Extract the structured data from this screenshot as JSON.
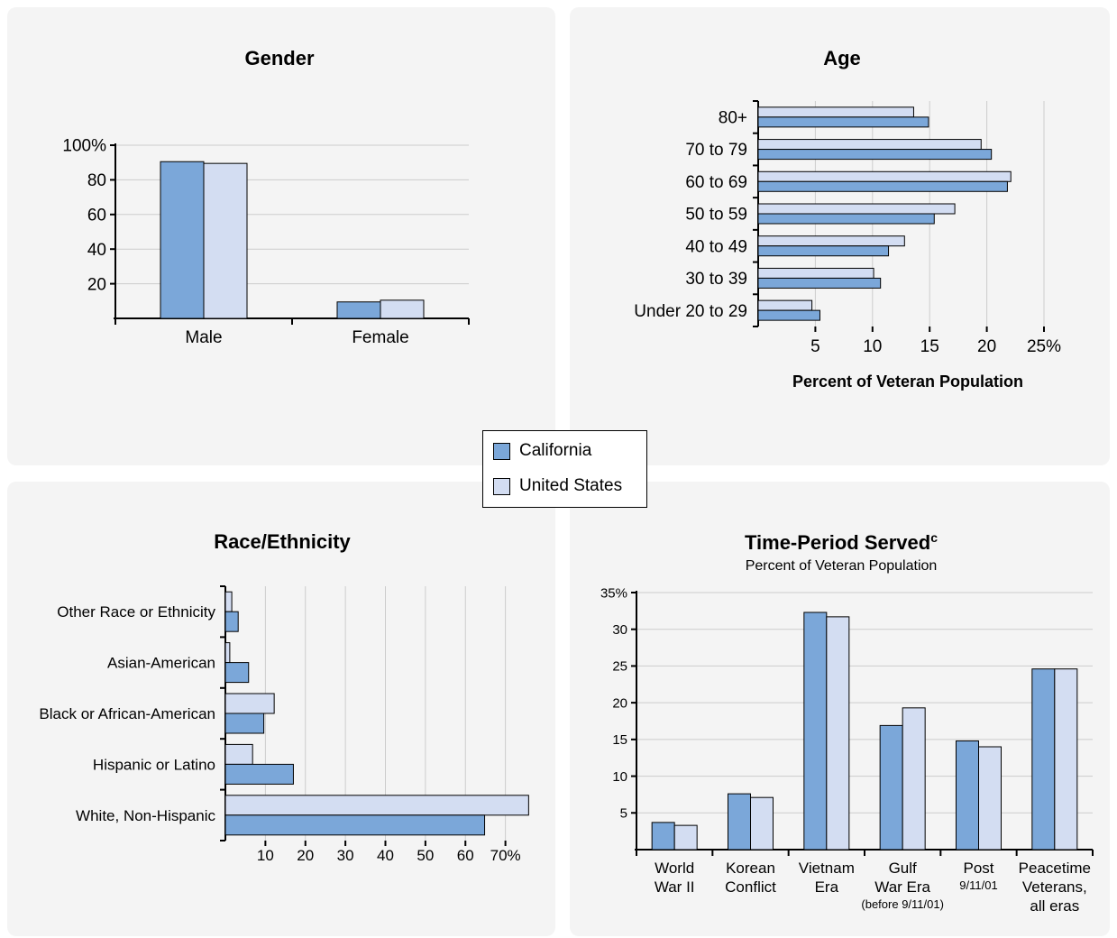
{
  "colors": {
    "california": "#7ba7d9",
    "united_states": "#d3ddf2",
    "grid": "#cccccc",
    "axis": "#000000"
  },
  "legend": {
    "items": [
      {
        "label": "California",
        "color": "#7ba7d9"
      },
      {
        "label": "United States",
        "color": "#d3ddf2"
      }
    ]
  },
  "chart_data": [
    {
      "id": "gender",
      "type": "bar",
      "orientation": "vertical",
      "title": "Gender",
      "subtitle": "",
      "title_sup": "",
      "categories": [
        "Male",
        "Female"
      ],
      "series": [
        {
          "name": "California",
          "values": [
            90.5,
            9.5
          ]
        },
        {
          "name": "United States",
          "values": [
            89.5,
            10.5
          ]
        }
      ],
      "ylim": [
        0,
        100
      ],
      "ticks": [
        20,
        40,
        60,
        80,
        100
      ],
      "tick_labels": [
        "20",
        "40",
        "60",
        "80",
        "100%"
      ],
      "xlabel": "",
      "ylabel": "",
      "grid": true
    },
    {
      "id": "age",
      "type": "bar",
      "orientation": "horizontal",
      "title": "Age",
      "subtitle": "",
      "title_sup": "",
      "categories": [
        "80+",
        "70 to 79",
        "60 to 69",
        "50 to 59",
        "40 to 49",
        "30 to 39",
        "Under 20 to 29"
      ],
      "series": [
        {
          "name": "California",
          "values": [
            14.9,
            20.4,
            21.8,
            15.4,
            11.4,
            10.7,
            5.4
          ]
        },
        {
          "name": "United States",
          "values": [
            13.6,
            19.5,
            22.1,
            17.2,
            12.8,
            10.1,
            4.7
          ]
        }
      ],
      "xlim": [
        0,
        25
      ],
      "ticks": [
        5,
        10,
        15,
        20,
        25
      ],
      "tick_labels": [
        "5",
        "10",
        "15",
        "20",
        "25%"
      ],
      "xlabel": "Percent of Veteran Population",
      "ylabel": "",
      "grid": true
    },
    {
      "id": "race",
      "type": "bar",
      "orientation": "horizontal",
      "title": "Race/Ethnicity",
      "subtitle": "",
      "title_sup": "",
      "categories": [
        "Other Race or Ethnicity",
        "Asian-American",
        "Black or African-American",
        "Hispanic or Latino",
        "White, Non-Hispanic"
      ],
      "series": [
        {
          "name": "California",
          "values": [
            3.2,
            5.8,
            9.6,
            17.0,
            64.8
          ]
        },
        {
          "name": "United States",
          "values": [
            1.6,
            1.1,
            12.2,
            6.8,
            75.8
          ]
        }
      ],
      "xlim": [
        0,
        80
      ],
      "ticks": [
        10,
        20,
        30,
        40,
        50,
        60,
        70
      ],
      "tick_labels": [
        "10",
        "20",
        "30",
        "40",
        "50",
        "60",
        "70%"
      ],
      "xlabel": "",
      "ylabel": "",
      "grid": true
    },
    {
      "id": "period",
      "type": "bar",
      "orientation": "vertical",
      "title": "Time-Period Served",
      "title_sup": "c",
      "subtitle": "Percent of Veteran Population",
      "categories": [
        {
          "lines": [
            "World",
            "War II"
          ],
          "small": ""
        },
        {
          "lines": [
            "Korean",
            "Conflict"
          ],
          "small": ""
        },
        {
          "lines": [
            "Vietnam",
            "Era"
          ],
          "small": ""
        },
        {
          "lines": [
            "Gulf",
            "War Era"
          ],
          "small": "(before 9/11/01)"
        },
        {
          "lines": [
            "Post"
          ],
          "small": "9/11/01"
        },
        {
          "lines": [
            "Peacetime",
            "Veterans,",
            "all eras"
          ],
          "small": ""
        }
      ],
      "series": [
        {
          "name": "California",
          "values": [
            3.7,
            7.6,
            32.3,
            16.9,
            14.8,
            24.6
          ]
        },
        {
          "name": "United States",
          "values": [
            3.3,
            7.1,
            31.7,
            19.3,
            14.0,
            24.6
          ]
        }
      ],
      "ylim": [
        0,
        35
      ],
      "ticks": [
        5,
        10,
        15,
        20,
        25,
        30,
        35
      ],
      "tick_labels": [
        "5",
        "10",
        "15",
        "20",
        "25",
        "30",
        "35%"
      ],
      "xlabel": "",
      "ylabel": "",
      "grid": true
    }
  ]
}
